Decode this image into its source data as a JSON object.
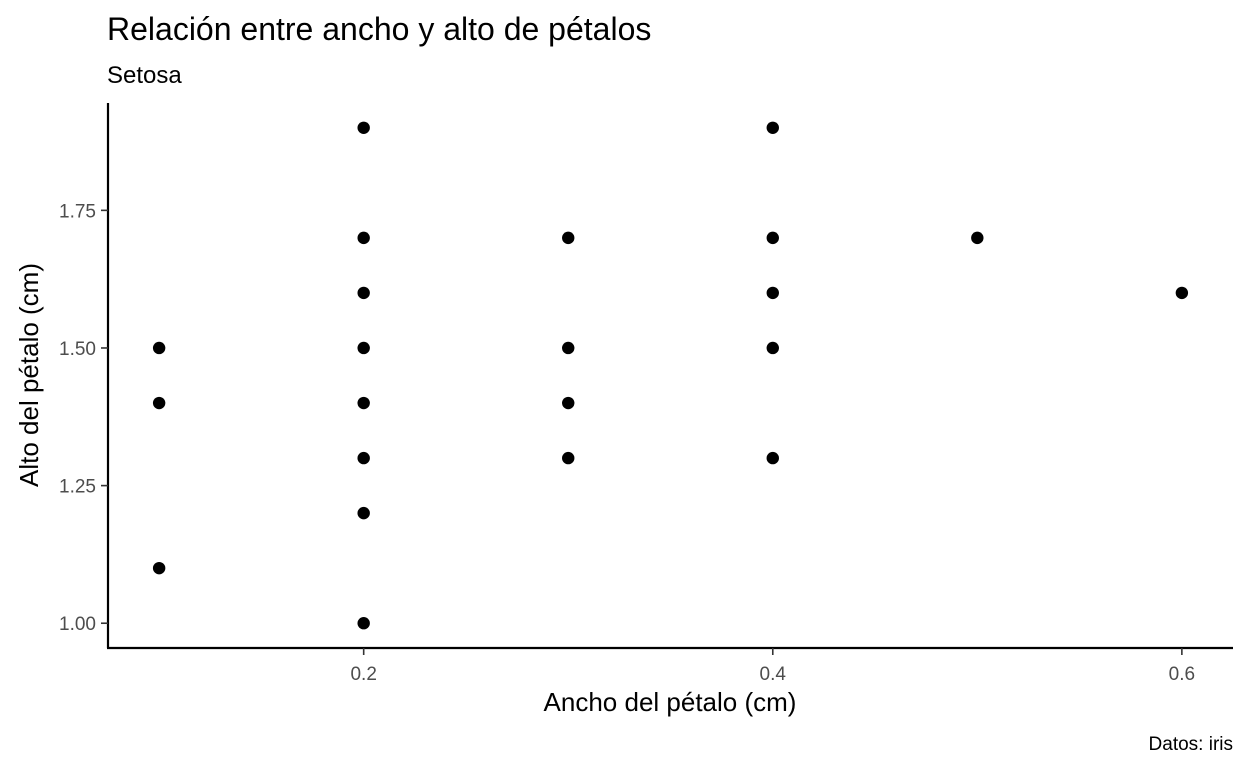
{
  "chart_data": {
    "type": "scatter",
    "title": "Relación entre ancho y alto de pétalos",
    "subtitle": "Setosa",
    "xlabel": "Ancho del pétalo (cm)",
    "ylabel": "Alto del pétalo (cm)",
    "caption": "Datos: iris",
    "xlim": [
      0.075,
      0.625
    ],
    "ylim": [
      0.955,
      1.945
    ],
    "x_ticks": [
      0.2,
      0.4,
      0.6
    ],
    "x_tick_labels": [
      "0.2",
      "0.4",
      "0.6"
    ],
    "y_ticks": [
      1.0,
      1.25,
      1.5,
      1.75
    ],
    "y_tick_labels": [
      "1.00",
      "1.25",
      "1.50",
      "1.75"
    ],
    "grid": false,
    "point_color": "#000000",
    "points": [
      {
        "x": 0.1,
        "y": 1.5
      },
      {
        "x": 0.1,
        "y": 1.4
      },
      {
        "x": 0.1,
        "y": 1.1
      },
      {
        "x": 0.2,
        "y": 1.9
      },
      {
        "x": 0.2,
        "y": 1.7
      },
      {
        "x": 0.2,
        "y": 1.6
      },
      {
        "x": 0.2,
        "y": 1.5
      },
      {
        "x": 0.2,
        "y": 1.4
      },
      {
        "x": 0.2,
        "y": 1.3
      },
      {
        "x": 0.2,
        "y": 1.2
      },
      {
        "x": 0.2,
        "y": 1.0
      },
      {
        "x": 0.3,
        "y": 1.7
      },
      {
        "x": 0.3,
        "y": 1.5
      },
      {
        "x": 0.3,
        "y": 1.4
      },
      {
        "x": 0.3,
        "y": 1.3
      },
      {
        "x": 0.4,
        "y": 1.9
      },
      {
        "x": 0.4,
        "y": 1.7
      },
      {
        "x": 0.4,
        "y": 1.6
      },
      {
        "x": 0.4,
        "y": 1.5
      },
      {
        "x": 0.4,
        "y": 1.3
      },
      {
        "x": 0.5,
        "y": 1.7
      },
      {
        "x": 0.6,
        "y": 1.6
      }
    ]
  }
}
